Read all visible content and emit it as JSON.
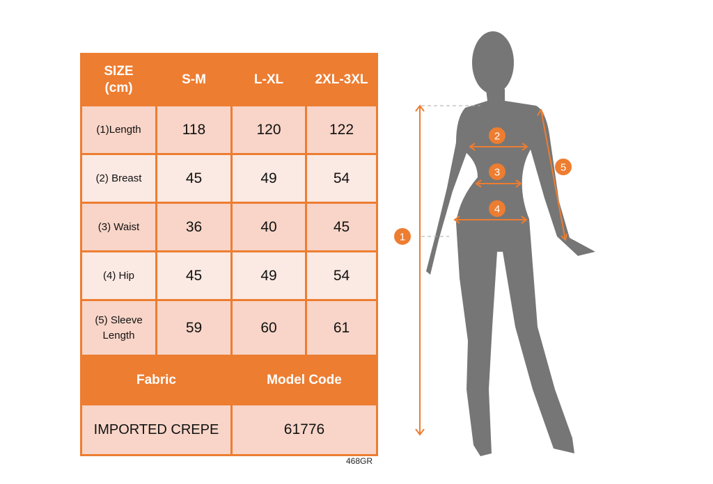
{
  "table": {
    "header": [
      "SIZE\n(cm)",
      "S-M",
      "L-XL",
      "2XL-3XL"
    ],
    "header_line1": "SIZE",
    "header_line2": "(cm)",
    "rows": [
      {
        "label": "(1)Length",
        "values": [
          "118",
          "120",
          "122"
        ]
      },
      {
        "label": "(2) Breast",
        "values": [
          "45",
          "49",
          "54"
        ]
      },
      {
        "label": "(3) Waist",
        "values": [
          "36",
          "40",
          "45"
        ]
      },
      {
        "label": "(4) Hip",
        "values": [
          "45",
          "49",
          "54"
        ]
      },
      {
        "label_line1": "(5) Sleeve",
        "label_line2": "Length",
        "values": [
          "59",
          "60",
          "61"
        ]
      }
    ],
    "footer_headers": [
      "Fabric",
      "Model Code"
    ],
    "footer_values": [
      "IMPORTED CREPE",
      "61776"
    ]
  },
  "product_code": "468GR",
  "figure": {
    "markers": [
      "1",
      "2",
      "3",
      "4",
      "5"
    ]
  },
  "colors": {
    "accent": "#ed7d31",
    "row_dark": "#f8d5c8",
    "row_light": "#fbe9e3",
    "silhouette": "#767676"
  }
}
